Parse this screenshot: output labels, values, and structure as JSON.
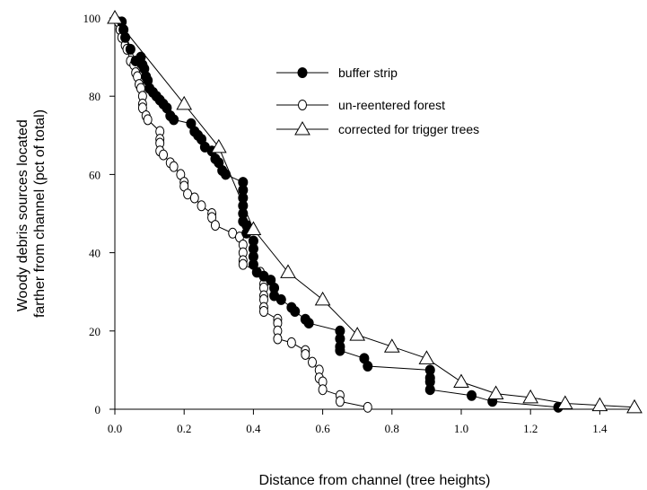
{
  "chart_data": {
    "type": "line",
    "title": "",
    "xlabel": "Distance from channel (tree heights)",
    "ylabel": [
      "Woody debris sources located",
      "farther from channel (pct of total)"
    ],
    "xlim": [
      0,
      1.5
    ],
    "ylim": [
      0,
      100
    ],
    "xticks": [
      "0.0",
      "0.2",
      "0.4",
      "0.6",
      "0.8",
      "1.0",
      "1.2",
      "1.4"
    ],
    "xtick_values": [
      0,
      0.2,
      0.4,
      0.6,
      0.8,
      1.0,
      1.2,
      1.4
    ],
    "yticks": [
      "0",
      "20",
      "40",
      "60",
      "80",
      "100"
    ],
    "ytick_values": [
      0,
      20,
      40,
      60,
      80,
      100
    ],
    "grid": false,
    "legend_position": "top-right",
    "series": [
      {
        "name": "buffer strip",
        "marker": "filled-circle",
        "color": "#000000",
        "points": [
          [
            0.02,
            99
          ],
          [
            0.025,
            97
          ],
          [
            0.03,
            95
          ],
          [
            0.045,
            92
          ],
          [
            0.06,
            89
          ],
          [
            0.075,
            90
          ],
          [
            0.08,
            88
          ],
          [
            0.085,
            87
          ],
          [
            0.09,
            85
          ],
          [
            0.095,
            84
          ],
          [
            0.1,
            82
          ],
          [
            0.11,
            81
          ],
          [
            0.12,
            80
          ],
          [
            0.13,
            79
          ],
          [
            0.14,
            78
          ],
          [
            0.15,
            77
          ],
          [
            0.16,
            75
          ],
          [
            0.17,
            74
          ],
          [
            0.22,
            73
          ],
          [
            0.23,
            71
          ],
          [
            0.24,
            70
          ],
          [
            0.25,
            69
          ],
          [
            0.26,
            67
          ],
          [
            0.28,
            66
          ],
          [
            0.29,
            64
          ],
          [
            0.3,
            63
          ],
          [
            0.31,
            61
          ],
          [
            0.32,
            60
          ],
          [
            0.37,
            58
          ],
          [
            0.37,
            56
          ],
          [
            0.37,
            54
          ],
          [
            0.37,
            52
          ],
          [
            0.37,
            50
          ],
          [
            0.37,
            48
          ],
          [
            0.38,
            47
          ],
          [
            0.38,
            45
          ],
          [
            0.4,
            43
          ],
          [
            0.4,
            41
          ],
          [
            0.4,
            39
          ],
          [
            0.4,
            37
          ],
          [
            0.41,
            35
          ],
          [
            0.43,
            34
          ],
          [
            0.45,
            33
          ],
          [
            0.46,
            31
          ],
          [
            0.46,
            29
          ],
          [
            0.48,
            28
          ],
          [
            0.51,
            26
          ],
          [
            0.52,
            25
          ],
          [
            0.55,
            23
          ],
          [
            0.56,
            22
          ],
          [
            0.65,
            20
          ],
          [
            0.65,
            18
          ],
          [
            0.65,
            16
          ],
          [
            0.65,
            15
          ],
          [
            0.72,
            13
          ],
          [
            0.73,
            11
          ],
          [
            0.91,
            10
          ],
          [
            0.91,
            8
          ],
          [
            0.91,
            7
          ],
          [
            0.91,
            5
          ],
          [
            1.03,
            3.5
          ],
          [
            1.09,
            2
          ],
          [
            1.28,
            0.5
          ]
        ]
      },
      {
        "name": "un-reentered forest",
        "marker": "open-circle",
        "color": "#000000",
        "points": [
          [
            0.01,
            99
          ],
          [
            0.015,
            97
          ],
          [
            0.02,
            95
          ],
          [
            0.03,
            93
          ],
          [
            0.035,
            92
          ],
          [
            0.045,
            89
          ],
          [
            0.055,
            88
          ],
          [
            0.06,
            86
          ],
          [
            0.065,
            85
          ],
          [
            0.07,
            83
          ],
          [
            0.075,
            82
          ],
          [
            0.08,
            80
          ],
          [
            0.08,
            78
          ],
          [
            0.08,
            77
          ],
          [
            0.09,
            75
          ],
          [
            0.095,
            74
          ],
          [
            0.13,
            71
          ],
          [
            0.13,
            69
          ],
          [
            0.13,
            68
          ],
          [
            0.13,
            66
          ],
          [
            0.14,
            65
          ],
          [
            0.16,
            63
          ],
          [
            0.17,
            62
          ],
          [
            0.19,
            60
          ],
          [
            0.2,
            58
          ],
          [
            0.2,
            57
          ],
          [
            0.21,
            55
          ],
          [
            0.23,
            54
          ],
          [
            0.25,
            52
          ],
          [
            0.28,
            50
          ],
          [
            0.28,
            49
          ],
          [
            0.29,
            47
          ],
          [
            0.34,
            45
          ],
          [
            0.36,
            44
          ],
          [
            0.37,
            42
          ],
          [
            0.37,
            40
          ],
          [
            0.37,
            38
          ],
          [
            0.37,
            37
          ],
          [
            0.42,
            35
          ],
          [
            0.43,
            34
          ],
          [
            0.43,
            32
          ],
          [
            0.43,
            31
          ],
          [
            0.43,
            29
          ],
          [
            0.43,
            28
          ],
          [
            0.43,
            26
          ],
          [
            0.43,
            25
          ],
          [
            0.47,
            23
          ],
          [
            0.47,
            22
          ],
          [
            0.47,
            20
          ],
          [
            0.47,
            18
          ],
          [
            0.51,
            17
          ],
          [
            0.55,
            15
          ],
          [
            0.55,
            14
          ],
          [
            0.57,
            12
          ],
          [
            0.59,
            10
          ],
          [
            0.59,
            8
          ],
          [
            0.6,
            7
          ],
          [
            0.6,
            5
          ],
          [
            0.65,
            3.5
          ],
          [
            0.65,
            2
          ],
          [
            0.73,
            0.5
          ]
        ]
      },
      {
        "name": "corrected for trigger trees",
        "marker": "open-triangle",
        "color": "#000000",
        "points": [
          [
            0.0,
            100
          ],
          [
            0.2,
            78
          ],
          [
            0.3,
            67
          ],
          [
            0.4,
            46
          ],
          [
            0.5,
            35
          ],
          [
            0.6,
            28
          ],
          [
            0.7,
            19
          ],
          [
            0.8,
            16
          ],
          [
            0.9,
            13
          ],
          [
            1.0,
            7
          ],
          [
            1.1,
            4
          ],
          [
            1.2,
            3
          ],
          [
            1.3,
            1.5
          ],
          [
            1.4,
            1
          ],
          [
            1.5,
            0.5
          ]
        ]
      }
    ]
  }
}
